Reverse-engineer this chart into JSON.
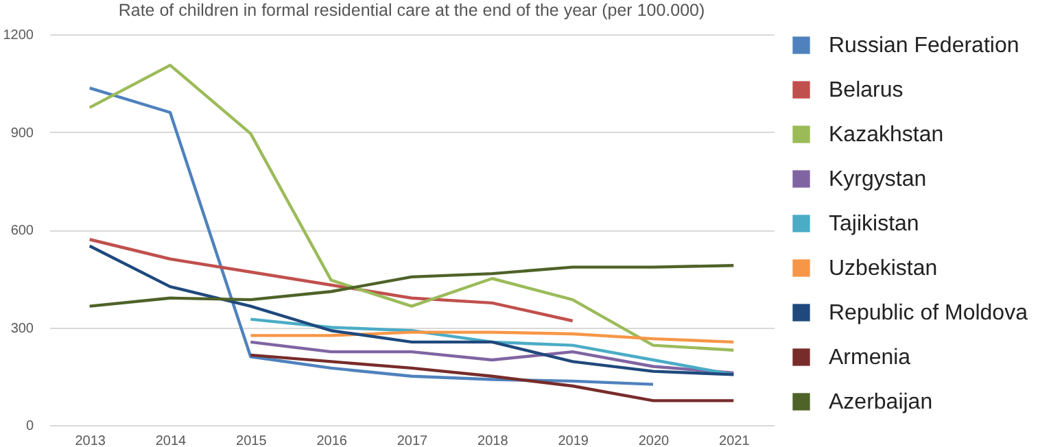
{
  "chart_data": {
    "type": "line",
    "title": "Rate of children in formal residential care at the end of the year (per 100.000)",
    "categories": [
      "2013",
      "2014",
      "2015",
      "2016",
      "2017",
      "2018",
      "2019",
      "2020",
      "2021"
    ],
    "ylim": [
      0,
      1200
    ],
    "yticks": [
      0,
      300,
      600,
      900,
      1200
    ],
    "grid": "y",
    "legend": "right",
    "marker": "none",
    "line_style": "solid",
    "series": [
      {
        "name": "Russian Federation",
        "color": "#4f81bd",
        "values": [
          1035,
          960,
          210,
          175,
          150,
          140,
          135,
          125,
          null
        ]
      },
      {
        "name": "Belarus",
        "color": "#c0504d",
        "values": [
          570,
          510,
          470,
          430,
          390,
          375,
          320,
          null,
          null
        ]
      },
      {
        "name": "Kazakhstan",
        "color": "#9bbb59",
        "values": [
          975,
          1105,
          895,
          445,
          365,
          450,
          385,
          245,
          230
        ]
      },
      {
        "name": "Kyrgystan",
        "color": "#8064a2",
        "values": [
          null,
          null,
          255,
          225,
          225,
          200,
          225,
          180,
          160
        ]
      },
      {
        "name": "Tajikistan",
        "color": "#4bacc6",
        "values": [
          null,
          null,
          325,
          300,
          290,
          255,
          245,
          200,
          155
        ]
      },
      {
        "name": "Uzbekistan",
        "color": "#f79646",
        "values": [
          null,
          null,
          275,
          275,
          285,
          285,
          280,
          265,
          255
        ]
      },
      {
        "name": "Republic of Moldova",
        "color": "#1f497d",
        "values": [
          550,
          425,
          365,
          290,
          255,
          255,
          195,
          165,
          155
        ]
      },
      {
        "name": "Armenia",
        "color": "#772c2a",
        "values": [
          null,
          null,
          215,
          195,
          175,
          150,
          120,
          75,
          75
        ]
      },
      {
        "name": "Azerbaijan",
        "color": "#4f6228",
        "values": [
          365,
          390,
          385,
          410,
          455,
          465,
          485,
          485,
          490
        ]
      }
    ]
  }
}
